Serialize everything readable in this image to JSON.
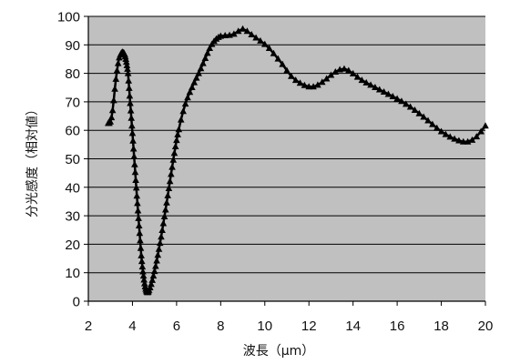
{
  "chart_data": {
    "type": "line",
    "xlabel": "波長（μm）",
    "ylabel": "分光感度（相対値）",
    "xlim": [
      2,
      20
    ],
    "ylim": [
      0,
      100
    ],
    "xticks": [
      2,
      4,
      6,
      8,
      10,
      12,
      14,
      16,
      18,
      20
    ],
    "yticks": [
      0,
      10,
      20,
      30,
      40,
      50,
      60,
      70,
      80,
      90,
      100
    ],
    "grid": {
      "horizontal": true,
      "vertical": false
    },
    "marker": "triangle",
    "plot_background": "#c0c0c0",
    "grid_color": "#000000",
    "line_color": "#000000",
    "series": [
      {
        "x": [
          2.9,
          2.95,
          3.0,
          3.05,
          3.1,
          3.15,
          3.2,
          3.25,
          3.3,
          3.35,
          3.4,
          3.45,
          3.5,
          3.55,
          3.6,
          3.625,
          3.65,
          3.675,
          3.7,
          3.725,
          3.75,
          3.775,
          3.8,
          3.825,
          3.85,
          3.875,
          3.9,
          3.925,
          3.95,
          3.975,
          4.0,
          4.025,
          4.05,
          4.075,
          4.1,
          4.125,
          4.15,
          4.175,
          4.2,
          4.225,
          4.25,
          4.275,
          4.3,
          4.325,
          4.35,
          4.375,
          4.4,
          4.425,
          4.45,
          4.475,
          4.5,
          4.525,
          4.55,
          4.575,
          4.6,
          4.625,
          4.65,
          4.675,
          4.7,
          4.725,
          4.75,
          4.8,
          4.85,
          4.9,
          4.95,
          5.0,
          5.05,
          5.1,
          5.15,
          5.2,
          5.25,
          5.3,
          5.35,
          5.4,
          5.45,
          5.5,
          5.55,
          5.6,
          5.65,
          5.7,
          5.75,
          5.8,
          5.85,
          5.9,
          5.95,
          6.0,
          6.05,
          6.1,
          6.2,
          6.3,
          6.4,
          6.5,
          6.6,
          6.7,
          6.8,
          6.9,
          7.0,
          7.1,
          7.2,
          7.3,
          7.4,
          7.5,
          7.6,
          7.7,
          7.8,
          7.9,
          8.0,
          8.2,
          8.4,
          8.6,
          8.8,
          9.0,
          9.2,
          9.4,
          9.6,
          9.8,
          10.0,
          10.2,
          10.4,
          10.6,
          10.8,
          11.0,
          11.2,
          11.4,
          11.6,
          11.8,
          12.0,
          12.2,
          12.4,
          12.6,
          12.8,
          13.0,
          13.2,
          13.4,
          13.6,
          13.8,
          14.0,
          14.2,
          14.4,
          14.6,
          14.8,
          15.0,
          15.2,
          15.4,
          15.6,
          15.8,
          16.0,
          16.2,
          16.4,
          16.6,
          16.8,
          17.0,
          17.2,
          17.4,
          17.6,
          17.8,
          18.0,
          18.2,
          18.4,
          18.6,
          18.8,
          19.0,
          19.2,
          19.4,
          19.6,
          19.8,
          20.0
        ],
        "y": [
          62.5,
          62.5,
          63.0,
          64.5,
          67.0,
          70.5,
          74.5,
          78.0,
          81.0,
          83.5,
          85.5,
          86.5,
          87.2,
          87.5,
          87.3,
          87.0,
          86.6,
          85.9,
          85.0,
          84.0,
          82.8,
          81.5,
          80.0,
          77.4,
          74.8,
          72.1,
          69.5,
          66.9,
          64.3,
          61.6,
          59.0,
          56.3,
          53.5,
          50.8,
          48.0,
          45.3,
          42.5,
          39.8,
          37.0,
          34.4,
          31.8,
          29.1,
          26.5,
          23.9,
          21.3,
          18.6,
          16.0,
          14.0,
          12.1,
          10.4,
          8.9,
          7.5,
          6.2,
          5.1,
          4.3,
          3.7,
          3.3,
          3.1,
          3.1,
          3.4,
          3.9,
          4.8,
          6.0,
          7.4,
          8.9,
          10.5,
          12.3,
          14.2,
          16.2,
          18.3,
          20.4,
          22.6,
          24.9,
          27.3,
          29.7,
          32.1,
          34.6,
          37.1,
          39.6,
          42.1,
          44.6,
          47.1,
          49.6,
          52.0,
          54.3,
          56.5,
          58.5,
          60.3,
          63.7,
          66.7,
          69.3,
          71.5,
          73.4,
          75.1,
          76.8,
          78.4,
          80.0,
          81.7,
          83.5,
          85.3,
          87.1,
          88.8,
          90.2,
          91.3,
          92.1,
          92.7,
          93.1,
          93.3,
          93.4,
          93.8,
          94.8,
          95.6,
          94.8,
          93.6,
          92.5,
          91.4,
          90.2,
          88.8,
          87.0,
          85.1,
          83.2,
          81.0,
          79.0,
          77.6,
          76.6,
          75.8,
          75.3,
          75.3,
          75.9,
          76.9,
          78.1,
          79.4,
          80.5,
          81.3,
          81.6,
          81.0,
          79.9,
          78.7,
          77.6,
          76.7,
          75.9,
          75.1,
          74.3,
          73.5,
          72.7,
          71.9,
          71.1,
          70.2,
          69.2,
          68.2,
          67.1,
          65.9,
          64.7,
          63.4,
          62.1,
          60.8,
          59.6,
          58.6,
          57.7,
          57.0,
          56.4,
          56.0,
          56.0,
          56.6,
          57.8,
          59.6,
          61.6
        ]
      }
    ]
  }
}
